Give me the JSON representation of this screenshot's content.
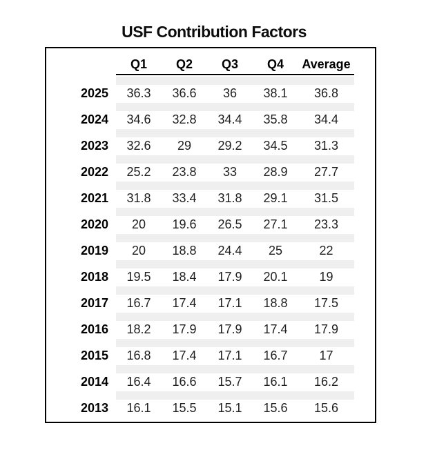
{
  "title": "USF Contribution Factors",
  "colors": {
    "stripe": "#efefef",
    "border": "#000000",
    "value_text": "#1f1f1f",
    "header_text": "#000000"
  },
  "chart_data": {
    "type": "table",
    "title": "USF Contribution Factors",
    "columns": [
      "Q1",
      "Q2",
      "Q3",
      "Q4",
      "Average"
    ],
    "row_header_label": "",
    "rows": [
      {
        "year": "2025",
        "values": [
          36.3,
          36.6,
          36,
          38.1,
          36.8
        ]
      },
      {
        "year": "2024",
        "values": [
          34.6,
          32.8,
          34.4,
          35.8,
          34.4
        ]
      },
      {
        "year": "2023",
        "values": [
          32.6,
          29,
          29.2,
          34.5,
          31.3
        ]
      },
      {
        "year": "2022",
        "values": [
          25.2,
          23.8,
          33,
          28.9,
          27.7
        ]
      },
      {
        "year": "2021",
        "values": [
          31.8,
          33.4,
          31.8,
          29.1,
          31.5
        ]
      },
      {
        "year": "2020",
        "values": [
          20,
          19.6,
          26.5,
          27.1,
          23.3
        ]
      },
      {
        "year": "2019",
        "values": [
          20,
          18.8,
          24.4,
          25,
          22
        ]
      },
      {
        "year": "2018",
        "values": [
          19.5,
          18.4,
          17.9,
          20.1,
          19
        ]
      },
      {
        "year": "2017",
        "values": [
          16.7,
          17.4,
          17.1,
          18.8,
          17.5
        ]
      },
      {
        "year": "2016",
        "values": [
          18.2,
          17.9,
          17.9,
          17.4,
          17.9
        ]
      },
      {
        "year": "2015",
        "values": [
          16.8,
          17.4,
          17.1,
          16.7,
          17
        ]
      },
      {
        "year": "2014",
        "values": [
          16.4,
          16.6,
          15.7,
          16.1,
          16.2
        ]
      },
      {
        "year": "2013",
        "values": [
          16.1,
          15.5,
          15.1,
          15.6,
          15.6
        ]
      }
    ],
    "layout": {
      "striped_separators": true,
      "gridlines": false,
      "header_underline_span": "data-columns-only"
    }
  }
}
